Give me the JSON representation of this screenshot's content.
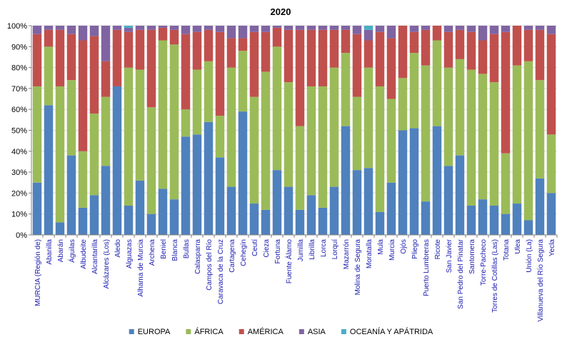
{
  "chart_data": {
    "type": "bar",
    "stacked": true,
    "percent": true,
    "title": "2020",
    "ylim": [
      0,
      100
    ],
    "yticks": [
      "0%",
      "10%",
      "20%",
      "30%",
      "40%",
      "50%",
      "60%",
      "70%",
      "80%",
      "90%",
      "100%"
    ],
    "grid": "horizontal",
    "legend_position": "bottom",
    "categories": [
      "MURCIA (Región de)",
      "Abanilla",
      "Abarán",
      "Águilas",
      "Albudeite",
      "Alcantarilla",
      "Alcázares (Los)",
      "Aledo",
      "Alguazas",
      "Alhama de Murcia",
      "Archena",
      "Beniel",
      "Blanca",
      "Bullas",
      "Calasparra",
      "Campos del Río",
      "Caravaca de la Cruz",
      "Cartagena",
      "Cehegín",
      "Ceutí",
      "Cieza",
      "Fortuna",
      "Fuente Álamo",
      "Jumilla",
      "Librilla",
      "Lorca",
      "Lorquí",
      "Mazarrón",
      "Molina de Segura",
      "Moratalla",
      "Mula",
      "Murcia",
      "Ojós",
      "Pliego",
      "Puerto Lumbreras",
      "Ricote",
      "San Javier",
      "San Pedro del Pinatar",
      "Santomera",
      "Torre-Pacheco",
      "Torres de Cotillas (Las)",
      "Totana",
      "Ulea",
      "Unión (La)",
      "Villanueva del Río Segura",
      "Yecla"
    ],
    "series": [
      {
        "name": "EUROPA",
        "color": "#4f81bd",
        "values": [
          25,
          62,
          6,
          38,
          13,
          19,
          33,
          71,
          14,
          26,
          10,
          22,
          17,
          47,
          48,
          54,
          37,
          23,
          59,
          15,
          12,
          31,
          23,
          12,
          19,
          13,
          23,
          52,
          31,
          32,
          11,
          25,
          50,
          51,
          16,
          52,
          33,
          38,
          14,
          17,
          14,
          10,
          15,
          7,
          27,
          20
        ]
      },
      {
        "name": "ÁFRICA",
        "color": "#9bbb59",
        "values": [
          46,
          28,
          65,
          36,
          27,
          39,
          33,
          0,
          66,
          53,
          51,
          71,
          74,
          13,
          31,
          29,
          20,
          57,
          29,
          51,
          66,
          59,
          50,
          40,
          52,
          58,
          57,
          35,
          35,
          48,
          60,
          40,
          25,
          36,
          65,
          41,
          47,
          46,
          65,
          60,
          59,
          29,
          66,
          76,
          47,
          28
        ]
      },
      {
        "name": "AMÉRICA",
        "color": "#c0504d",
        "values": [
          25,
          8,
          27,
          22,
          53,
          37,
          17,
          27,
          17,
          19,
          37,
          6,
          7,
          36,
          18,
          15,
          40,
          14,
          6,
          31,
          19,
          9,
          25,
          46,
          27,
          27,
          18,
          11,
          30,
          13,
          26,
          29,
          25,
          10,
          17,
          7,
          17,
          14,
          18,
          16,
          23,
          58,
          19,
          15,
          24,
          48
        ]
      },
      {
        "name": "ASIA",
        "color": "#8064a2",
        "values": [
          4,
          2,
          2,
          4,
          7,
          5,
          17,
          2,
          2,
          2,
          2,
          1,
          2,
          4,
          3,
          2,
          3,
          6,
          6,
          3,
          3,
          1,
          2,
          2,
          2,
          2,
          2,
          2,
          4,
          5,
          3,
          6,
          0,
          3,
          2,
          0,
          3,
          2,
          3,
          7,
          4,
          3,
          0,
          2,
          2,
          4
        ]
      },
      {
        "name": "OCEANÍA Y APÁTRIDA",
        "color": "#4bacc6",
        "values": [
          0,
          0,
          0,
          0,
          0,
          0,
          0,
          0,
          1,
          0,
          0,
          0,
          0,
          0,
          0,
          0,
          0,
          0,
          0,
          0,
          0,
          0,
          0,
          0,
          0,
          0,
          0,
          0,
          0,
          2,
          0,
          0,
          0,
          0,
          0,
          0,
          0,
          0,
          0,
          0,
          0,
          0,
          0,
          0,
          0,
          0
        ]
      }
    ]
  }
}
